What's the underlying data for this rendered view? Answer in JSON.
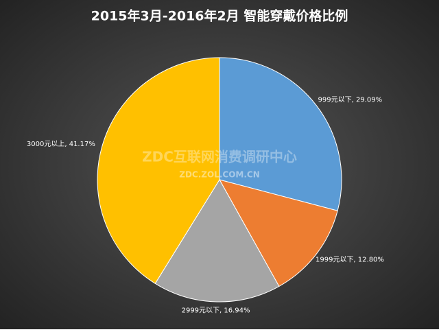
{
  "chart_data": {
    "type": "pie",
    "title": "2015年3月-2016年2月  智能穿戴价格比例",
    "values": [
      29.09,
      12.8,
      16.94,
      41.17
    ],
    "value_labels": [
      "999元以下, 29.09%",
      "1999元以下, 12.80%",
      "2999元以下, 16.94%",
      "3000元以上, 41.17%"
    ],
    "colors": [
      "#5b9bd5",
      "#ed7d31",
      "#a5a5a5",
      "#ffc000"
    ],
    "watermark": "ZDC互联网消费调研中心",
    "watermark_url": "ZDC.ZOL.COM.CN"
  }
}
